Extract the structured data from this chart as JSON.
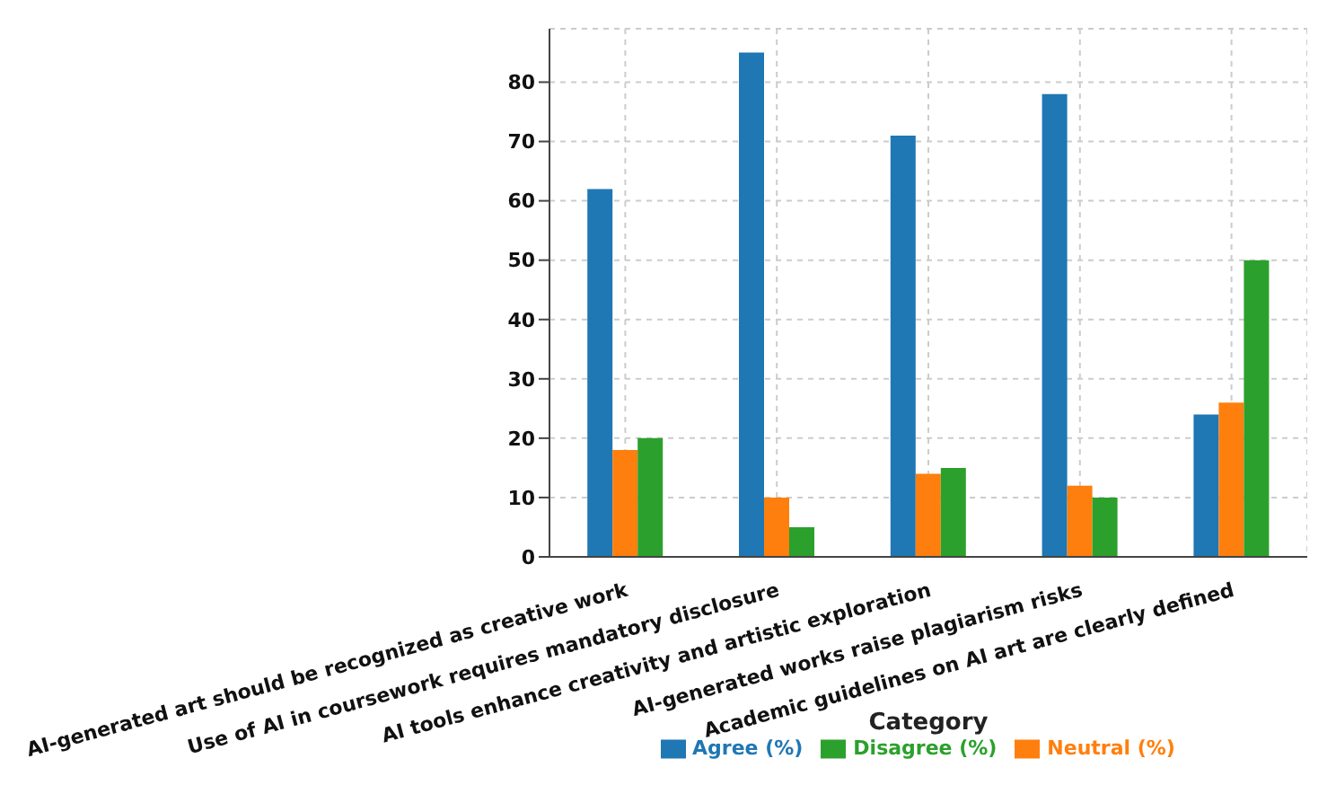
{
  "chart_data": {
    "type": "bar",
    "xlabel": "Category",
    "categories": [
      "AI-generated art should be recognized as creative work",
      "Use of AI in coursework requires mandatory disclosure",
      "AI tools enhance creativity and artistic exploration",
      "AI-generated works raise plagiarism risks",
      "Academic guidelines on AI art are clearly defined"
    ],
    "series": [
      {
        "name": "Agree (%)",
        "color": "#1f77b4",
        "values": [
          62,
          85,
          71,
          78,
          24
        ]
      },
      {
        "name": "Neutral (%)",
        "color": "#ff7f0e",
        "values": [
          18,
          10,
          14,
          12,
          26
        ]
      },
      {
        "name": "Disagree (%)",
        "color": "#2ca02c",
        "values": [
          20,
          5,
          15,
          10,
          50
        ]
      }
    ],
    "ylim": [
      0,
      89
    ],
    "yticks": [
      0,
      10,
      20,
      30,
      40,
      50,
      60,
      70,
      80
    ],
    "grid": true,
    "legend": "bottom"
  }
}
